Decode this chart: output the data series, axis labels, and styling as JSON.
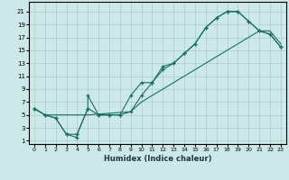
{
  "bg_color": "#cce8e8",
  "grid_color": "#aacccc",
  "line_color": "#1a6e60",
  "xlabel": "Humidex (Indice chaleur)",
  "xlim": [
    -0.5,
    23.5
  ],
  "ylim": [
    0.5,
    22.5
  ],
  "xticks": [
    0,
    1,
    2,
    3,
    4,
    5,
    6,
    7,
    8,
    9,
    10,
    11,
    12,
    13,
    14,
    15,
    16,
    17,
    18,
    19,
    20,
    21,
    22,
    23
  ],
  "yticks": [
    1,
    3,
    5,
    7,
    9,
    11,
    13,
    15,
    17,
    19,
    21
  ],
  "curve1_x": [
    0,
    1,
    2,
    3,
    4,
    4,
    5,
    5,
    6,
    7,
    8,
    9,
    10,
    11,
    12,
    13,
    14,
    15,
    16,
    17,
    18,
    19,
    20,
    21,
    22,
    23
  ],
  "curve1_y": [
    6,
    5,
    4.5,
    2,
    1.5,
    2,
    6,
    8,
    5,
    5,
    5,
    8,
    10,
    10,
    12.5,
    13,
    14.5,
    16,
    18.5,
    20,
    21,
    21,
    19.5,
    18,
    17.5,
    15.5
  ],
  "curve2_x": [
    0,
    1,
    2,
    3,
    4,
    5,
    6,
    7,
    8,
    9,
    10,
    11,
    12,
    13,
    14,
    15,
    16,
    17,
    18,
    19,
    20,
    21,
    22,
    23
  ],
  "curve2_y": [
    6,
    5,
    4.5,
    2,
    2,
    6,
    5,
    5,
    5,
    5.5,
    8,
    10,
    12,
    13,
    14.5,
    16,
    18.5,
    20,
    21,
    21,
    19.5,
    18,
    17.5,
    15.5
  ],
  "curve3_x": [
    0,
    1,
    2,
    5,
    9,
    10,
    11,
    12,
    13,
    14,
    15,
    16,
    17,
    18,
    19,
    20,
    21,
    22,
    23
  ],
  "curve3_y": [
    6,
    5,
    5,
    5,
    5.5,
    7,
    8,
    9,
    10,
    11,
    12,
    13,
    14,
    15,
    16,
    17,
    18,
    18,
    16
  ]
}
